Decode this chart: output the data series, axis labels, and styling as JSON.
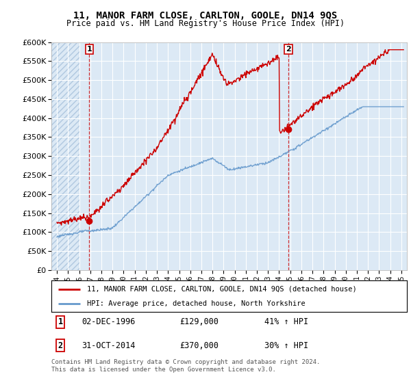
{
  "title": "11, MANOR FARM CLOSE, CARLTON, GOOLE, DN14 9QS",
  "subtitle": "Price paid vs. HM Land Registry's House Price Index (HPI)",
  "red_label": "11, MANOR FARM CLOSE, CARLTON, GOOLE, DN14 9QS (detached house)",
  "blue_label": "HPI: Average price, detached house, North Yorkshire",
  "point1_date": "02-DEC-1996",
  "point1_price": "£129,000",
  "point1_hpi": "41% ↑ HPI",
  "point1_year": 1996.92,
  "point1_value": 129000,
  "point2_date": "31-OCT-2014",
  "point2_price": "£370,000",
  "point2_hpi": "30% ↑ HPI",
  "point2_year": 2014.83,
  "point2_value": 370000,
  "ylim": [
    0,
    600000
  ],
  "xlim": [
    1993.5,
    2025.5
  ],
  "yticks": [
    0,
    50000,
    100000,
    150000,
    200000,
    250000,
    300000,
    350000,
    400000,
    450000,
    500000,
    550000,
    600000
  ],
  "xticks": [
    1994,
    1995,
    1996,
    1997,
    1998,
    1999,
    2000,
    2001,
    2002,
    2003,
    2004,
    2005,
    2006,
    2007,
    2008,
    2009,
    2010,
    2011,
    2012,
    2013,
    2014,
    2015,
    2016,
    2017,
    2018,
    2019,
    2020,
    2021,
    2022,
    2023,
    2024,
    2025
  ],
  "background_color": "#ffffff",
  "plot_bg_color": "#dce9f5",
  "grid_color": "#ffffff",
  "hatch_color": "#b0c8e0",
  "red_color": "#cc0000",
  "blue_color": "#6699cc",
  "footer": "Contains HM Land Registry data © Crown copyright and database right 2024.\nThis data is licensed under the Open Government Licence v3.0."
}
